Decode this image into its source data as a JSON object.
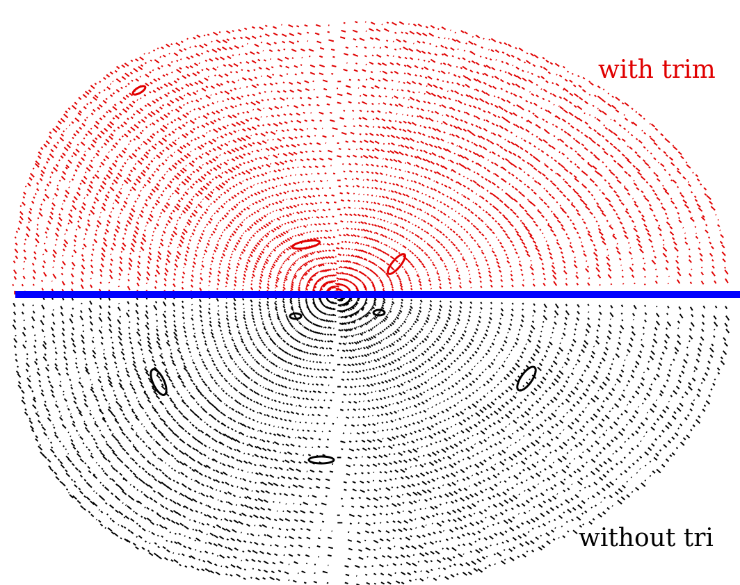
{
  "figure": {
    "upper_label": "with trim",
    "lower_label": "without tri",
    "colors": {
      "background": "#ffffff",
      "upper_surfaces": "#e00000",
      "lower_surfaces": "#000000",
      "divider": "#0000ff",
      "upper_label_color": "#e00000",
      "lower_label_color": "#000000"
    },
    "icons": [
      "magnetic-surface-dots",
      "magnetic-island-icon",
      "midplane-divider-line"
    ]
  }
}
